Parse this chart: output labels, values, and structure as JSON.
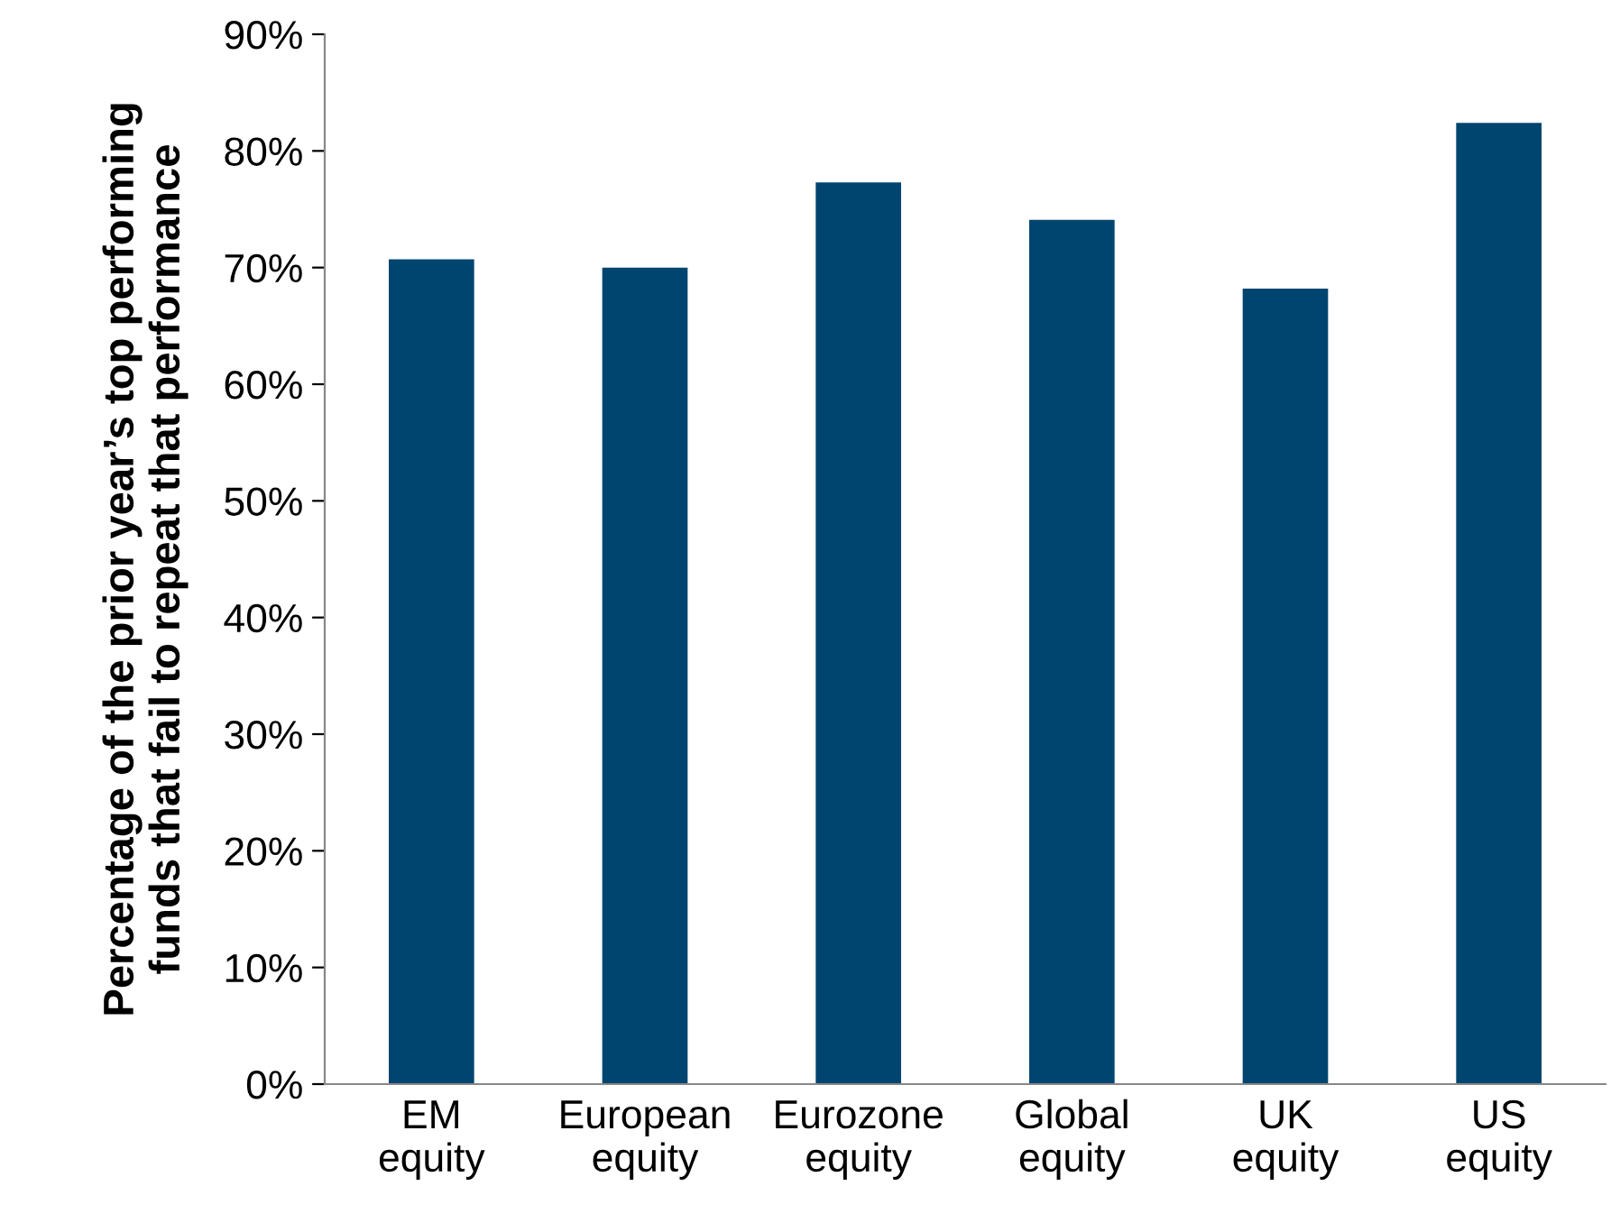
{
  "chart_data": {
    "type": "bar",
    "ylabel": "Percentage of the prior year’s top performing\nfunds that fail to repeat that performance",
    "categories": [
      "EM\nequity",
      "European\nequity",
      "Eurozone\nequity",
      "Global\nequity",
      "UK\nequity",
      "US\nequity"
    ],
    "values": [
      70.7,
      70.0,
      77.3,
      74.1,
      68.2,
      82.4
    ],
    "color": "#004570",
    "ylim": [
      0,
      90
    ],
    "yticks": [
      {
        "value": 0,
        "label": "0%"
      },
      {
        "value": 10,
        "label": "10%"
      },
      {
        "value": 20,
        "label": "20%"
      },
      {
        "value": 30,
        "label": "30%"
      },
      {
        "value": 40,
        "label": "40%"
      },
      {
        "value": 50,
        "label": "50%"
      },
      {
        "value": 60,
        "label": "60%"
      },
      {
        "value": 70,
        "label": "70%"
      },
      {
        "value": 80,
        "label": "80%"
      },
      {
        "value": 90,
        "label": "90%"
      }
    ],
    "grid": false,
    "legend": false
  }
}
